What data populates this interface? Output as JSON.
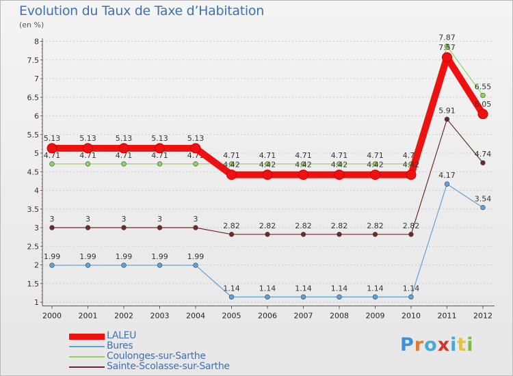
{
  "title": "Evolution du Taux de Taxe d’Habitation",
  "unit_label": "(en %)",
  "brand": {
    "text": "Proxiti",
    "letter_colors": [
      "#3d8fd8",
      "#e07a2e",
      "#4aa7d9",
      "#d4342c",
      "#4aa7d9",
      "#e8c230",
      "#7dbd3d"
    ]
  },
  "chart_data": {
    "type": "line",
    "x": [
      "2000",
      "2001",
      "2002",
      "2003",
      "2004",
      "2005",
      "2006",
      "2007",
      "2008",
      "2009",
      "2010",
      "2011",
      "2012"
    ],
    "ylim": [
      0.9,
      8.1
    ],
    "yticks": [
      1,
      1.5,
      2,
      2.5,
      3,
      3.5,
      4,
      4.5,
      5,
      5.5,
      6,
      6.5,
      7,
      7.5,
      8
    ],
    "ytick_labels": [
      "1",
      "1.5",
      "2",
      "2.5",
      "3",
      "3.5",
      "4",
      "4.5",
      "5",
      "5.5",
      "6",
      "6.5",
      "7",
      "7.5",
      "8"
    ],
    "grid": "horizontal dashed",
    "legend_position": "bottom-left",
    "series": [
      {
        "name": "Coulonges-sur-Sarthe",
        "color": "#8ed45a",
        "values": [
          4.71,
          4.71,
          4.71,
          4.71,
          4.71,
          4.71,
          4.71,
          4.71,
          4.71,
          4.71,
          4.71,
          7.87,
          6.55
        ],
        "labels": [
          "4.71",
          "4.71",
          "4.71",
          "4.71",
          "4.71",
          "4.71",
          "4.71",
          "4.71",
          "4.71",
          "4.71",
          "4.71",
          "7.87",
          "6.55"
        ]
      },
      {
        "name": "Bures",
        "color": "#5ea0d8",
        "values": [
          1.99,
          1.99,
          1.99,
          1.99,
          1.99,
          1.14,
          1.14,
          1.14,
          1.14,
          1.14,
          1.14,
          4.17,
          3.54
        ],
        "labels": [
          "1.99",
          "1.99",
          "1.99",
          "1.99",
          "1.99",
          "1.14",
          "1.14",
          "1.14",
          "1.14",
          "1.14",
          "1.14",
          "4.17",
          "3.54"
        ]
      },
      {
        "name": "Sainte-Scolasse-sur-Sarthe",
        "color": "#6b2a2a",
        "values": [
          3,
          3,
          3,
          3,
          3,
          2.82,
          2.82,
          2.82,
          2.82,
          2.82,
          2.82,
          5.91,
          4.74
        ],
        "labels": [
          "3",
          "3",
          "3",
          "3",
          "3",
          "2.82",
          "2.82",
          "2.82",
          "2.82",
          "2.82",
          "2.82",
          "5.91",
          "4.74"
        ]
      },
      {
        "name": "LALEU",
        "color": "#ee1111",
        "values": [
          5.13,
          5.13,
          5.13,
          5.13,
          5.13,
          4.42,
          4.42,
          4.42,
          4.42,
          4.42,
          4.42,
          7.57,
          6.05
        ],
        "labels": [
          "5.13",
          "5.13",
          "5.13",
          "5.13",
          "5.13",
          "4.42",
          "4.42",
          "4.42",
          "4.42",
          "4.42",
          "4.42",
          "7.57",
          "6.05"
        ]
      }
    ]
  },
  "legend": [
    {
      "name": "LALEU",
      "color": "#ee1111"
    },
    {
      "name": "Bures",
      "color": "#5ea0d8"
    },
    {
      "name": "Coulonges-sur-Sarthe",
      "color": "#8ed45a"
    },
    {
      "name": "Sainte-Scolasse-sur-Sarthe",
      "color": "#6b2a2a"
    }
  ]
}
